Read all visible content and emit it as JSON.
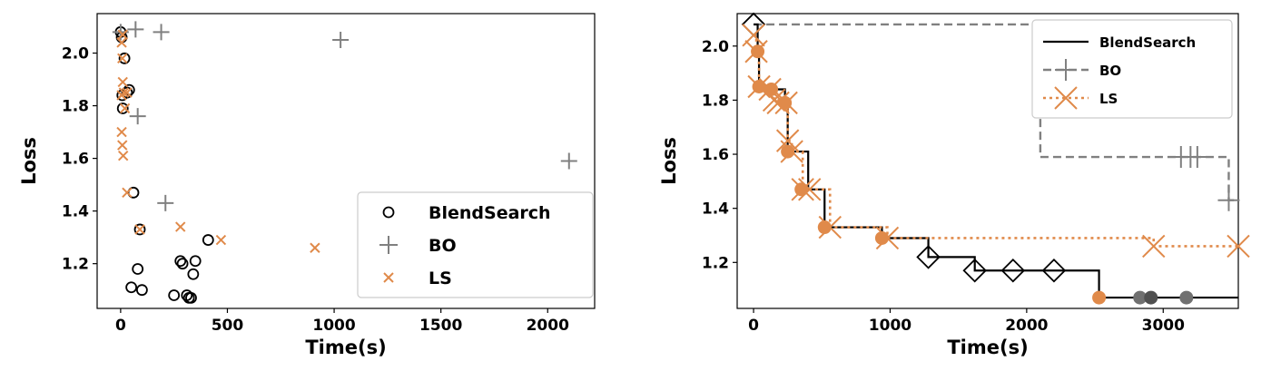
{
  "colors": {
    "blend": "#000000",
    "bo": "#808080",
    "ls": "#e08a4a",
    "legend_border": "#cccccc"
  },
  "chart_data": [
    {
      "type": "scatter",
      "xlabel": "Time(s)",
      "ylabel": "Loss",
      "xlim": [
        -110,
        2220
      ],
      "ylim": [
        1.03,
        2.15
      ],
      "xticks": [
        0,
        500,
        1000,
        1500,
        2000
      ],
      "yticks": [
        1.2,
        1.4,
        1.6,
        1.8,
        2.0
      ],
      "xtick_labels": [
        "0",
        "500",
        "1000",
        "1500",
        "2000"
      ],
      "ytick_labels": [
        "1.2",
        "1.4",
        "1.6",
        "1.8",
        "2.0"
      ],
      "legend_position": "lower-right",
      "series": [
        {
          "name": "BlendSearch",
          "marker": "circle",
          "x": [
            0,
            5,
            8,
            10,
            18,
            30,
            40,
            60,
            90,
            80,
            50,
            100,
            250,
            280,
            290,
            310,
            320,
            330,
            340,
            350,
            410
          ],
          "y": [
            2.08,
            2.06,
            1.84,
            1.79,
            1.98,
            1.85,
            1.86,
            1.47,
            1.33,
            1.18,
            1.11,
            1.1,
            1.08,
            1.21,
            1.2,
            1.08,
            1.07,
            1.07,
            1.16,
            1.21,
            1.29
          ]
        },
        {
          "name": "BO",
          "marker": "plus",
          "x": [
            0,
            70,
            190,
            1030,
            2100,
            80,
            210
          ],
          "y": [
            2.08,
            2.09,
            2.08,
            2.05,
            1.59,
            1.76,
            1.43
          ]
        },
        {
          "name": "LS",
          "marker": "x",
          "x": [
            5,
            10,
            15,
            20,
            5,
            8,
            12,
            5,
            10,
            30,
            30,
            90,
            280,
            470,
            910,
            8
          ],
          "y": [
            2.04,
            1.89,
            1.85,
            1.79,
            1.7,
            1.65,
            1.61,
            1.84,
            2.07,
            1.47,
            1.85,
            1.33,
            1.34,
            1.29,
            1.26,
            1.98
          ]
        }
      ]
    },
    {
      "type": "line",
      "xlabel": "Time(s)",
      "ylabel": "Loss",
      "xlim": [
        -120,
        3550
      ],
      "ylim": [
        1.03,
        2.12
      ],
      "xticks": [
        0,
        1000,
        2000,
        3000
      ],
      "yticks": [
        1.2,
        1.4,
        1.6,
        1.8,
        2.0
      ],
      "xtick_labels": [
        "0",
        "1000",
        "2000",
        "3000"
      ],
      "ytick_labels": [
        "1.2",
        "1.4",
        "1.6",
        "1.8",
        "2.0"
      ],
      "legend_position": "top-right",
      "series": [
        {
          "name": "BlendSearch",
          "line_style": "solid",
          "marker": "diamond",
          "x": [
            0,
            30,
            40,
            130,
            230,
            250,
            350,
            400,
            520,
            940,
            1280,
            1620,
            1900,
            2200,
            2530,
            3550
          ],
          "y": [
            2.08,
            1.98,
            1.85,
            1.84,
            1.79,
            1.61,
            1.61,
            1.47,
            1.33,
            1.29,
            1.22,
            1.17,
            1.17,
            1.17,
            1.07,
            1.07
          ],
          "marker_x": [
            0,
            1280,
            1620,
            1900,
            2200
          ],
          "marker_y": [
            2.08,
            1.22,
            1.17,
            1.17,
            1.17
          ],
          "dot_x": [
            30,
            40,
            130,
            230,
            250,
            350,
            520,
            940,
            2530,
            2830,
            2910,
            3170
          ],
          "dot_y": [
            1.98,
            1.85,
            1.84,
            1.79,
            1.61,
            1.47,
            1.33,
            1.29,
            1.07,
            1.07,
            1.07,
            1.07
          ]
        },
        {
          "name": "BO",
          "line_style": "dashed",
          "marker": "plus",
          "x": [
            0,
            2100,
            3130,
            3200,
            3250,
            3480,
            3550
          ],
          "y": [
            2.08,
            1.59,
            1.59,
            1.59,
            1.59,
            1.43,
            1.43
          ],
          "marker_x": [
            3130,
            3200,
            3250,
            3480
          ],
          "marker_y": [
            1.59,
            1.59,
            1.59,
            1.43
          ]
        },
        {
          "name": "LS",
          "line_style": "dotted",
          "marker": "x",
          "x": [
            0,
            20,
            40,
            120,
            150,
            180,
            240,
            250,
            280,
            360,
            410,
            560,
            980,
            2930,
            3550
          ],
          "y": [
            2.04,
            1.98,
            1.85,
            1.84,
            1.8,
            1.79,
            1.79,
            1.65,
            1.61,
            1.47,
            1.47,
            1.33,
            1.29,
            1.26,
            1.26
          ],
          "marker_x": [
            0,
            20,
            40,
            120,
            150,
            180,
            240,
            250,
            280,
            360,
            410,
            560,
            980,
            2930,
            3550
          ],
          "marker_y": [
            2.04,
            1.98,
            1.85,
            1.84,
            1.8,
            1.79,
            1.79,
            1.65,
            1.61,
            1.47,
            1.47,
            1.33,
            1.29,
            1.26,
            1.26
          ]
        }
      ]
    }
  ]
}
